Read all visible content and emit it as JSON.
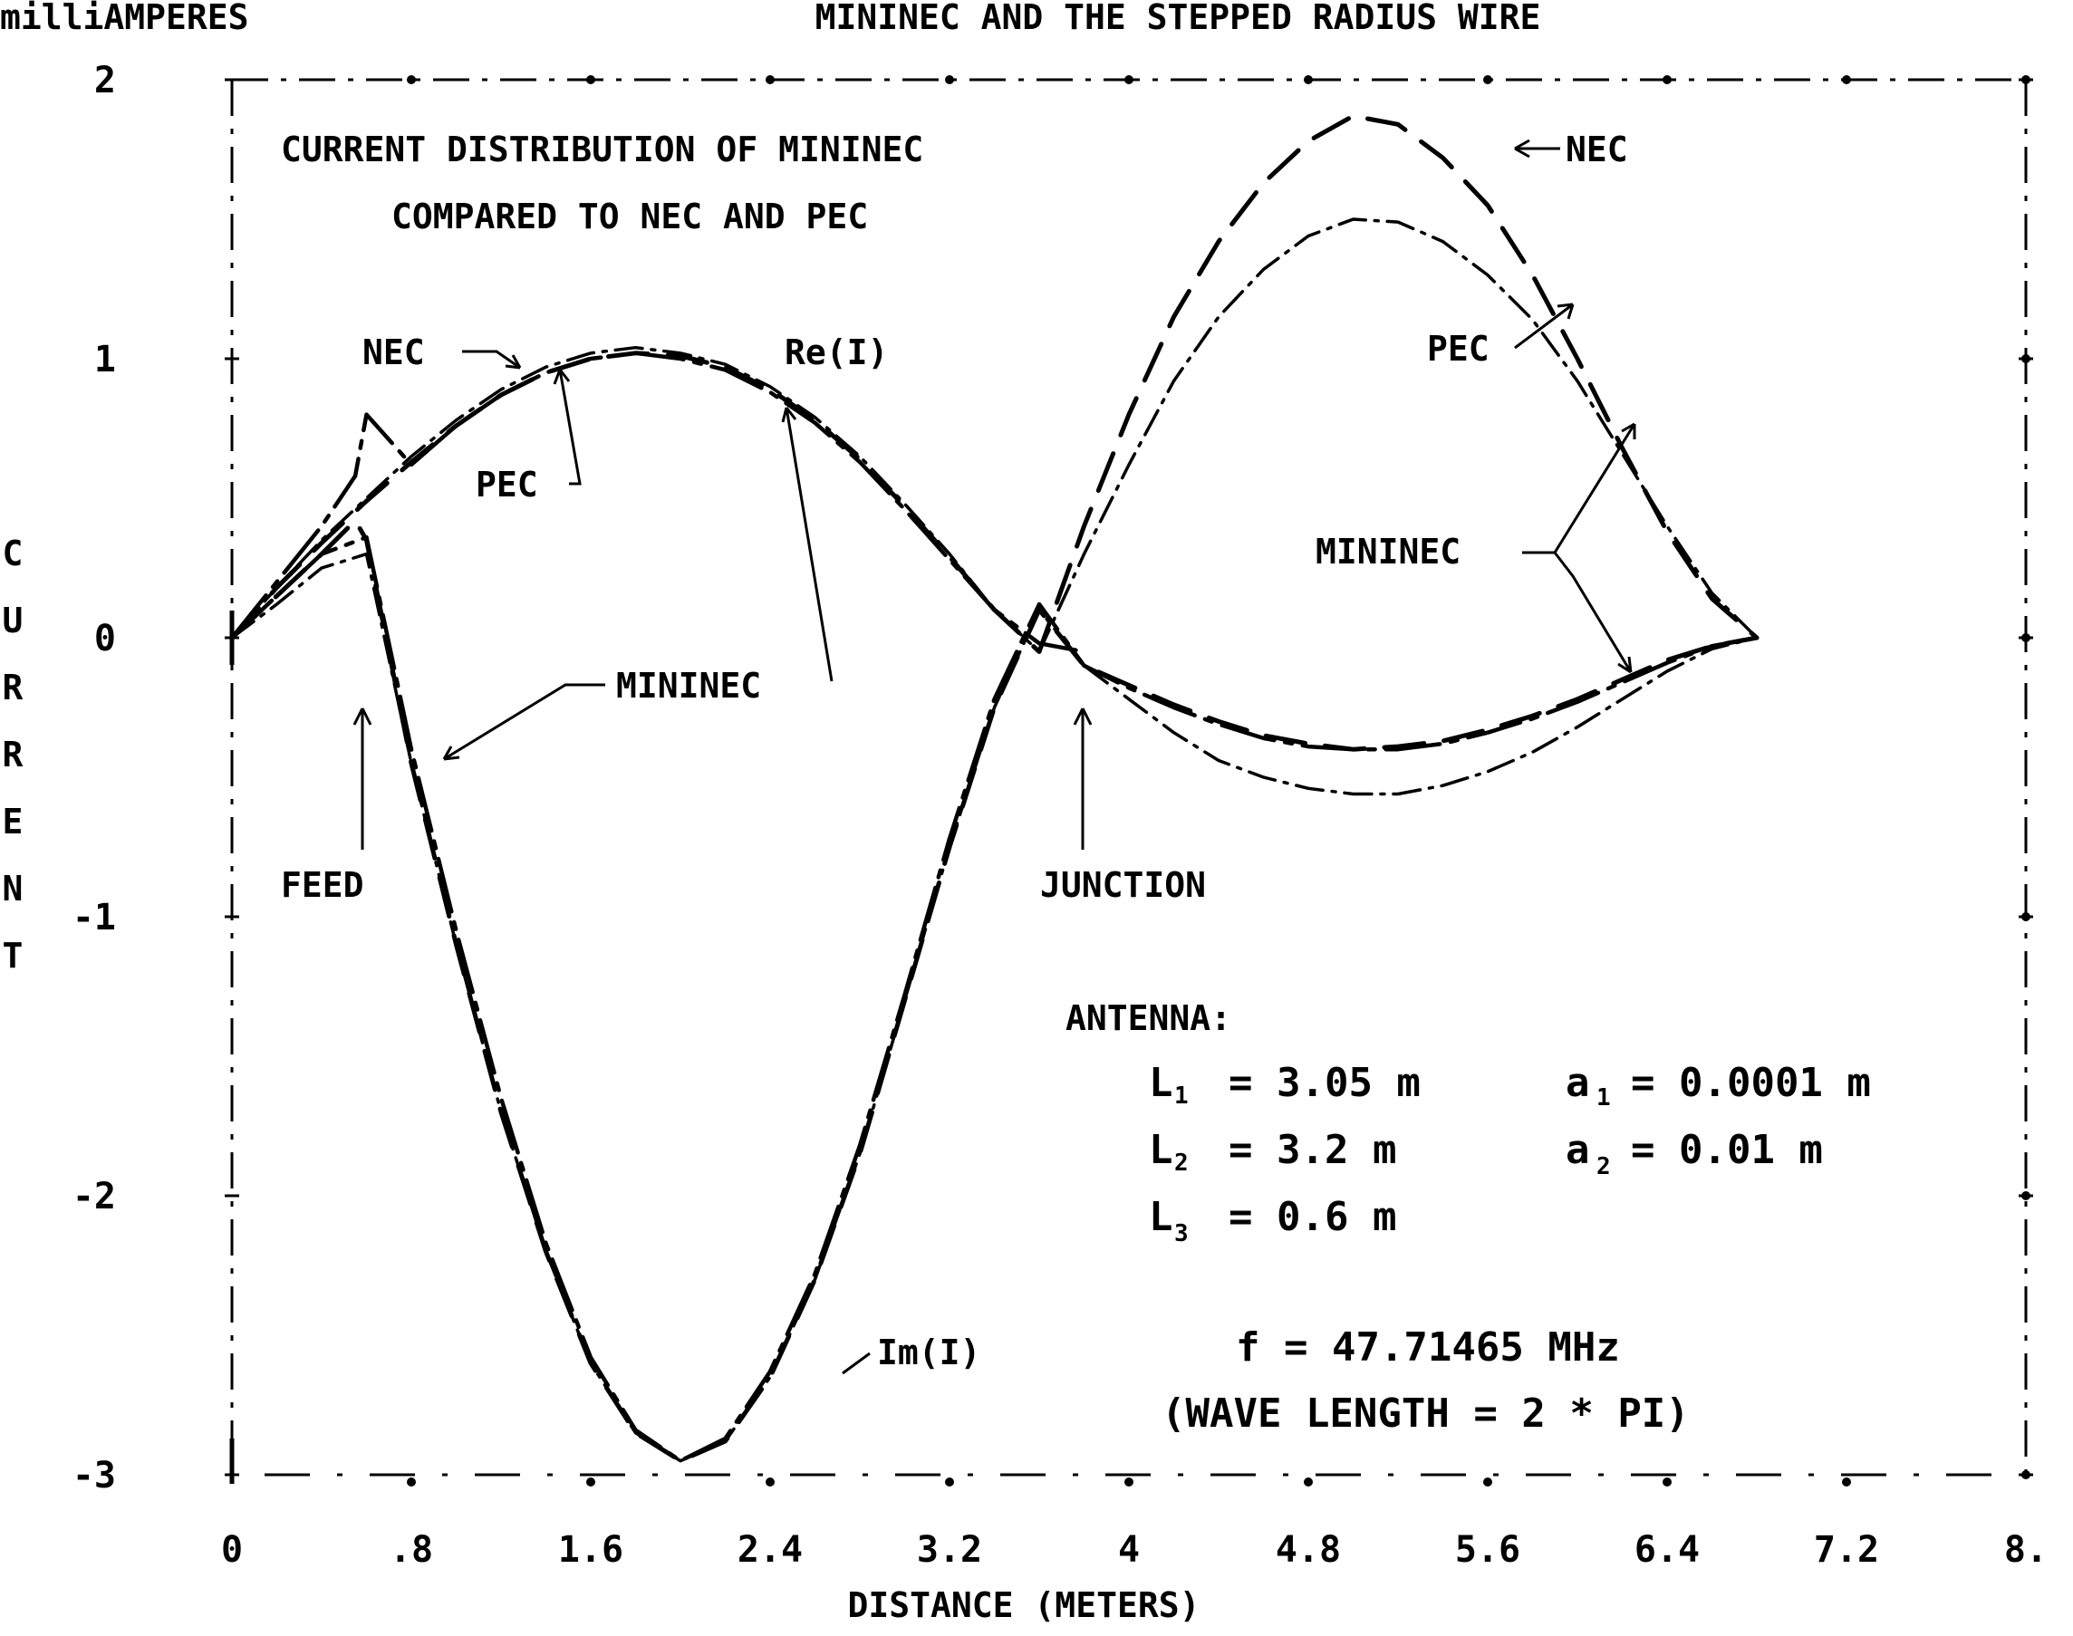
{
  "chart_data": {
    "type": "line",
    "title": "MININEC AND THE STEPPED RADIUS WIRE",
    "subtitle": "CURRENT DISTRIBUTION OF MININEC COMPARED TO NEC AND PEC",
    "subtitle_lines": [
      "CURRENT DISTRIBUTION OF MININEC",
      "COMPARED TO NEC AND PEC"
    ],
    "units_label": "milliAMPERES",
    "xlabel": "DISTANCE (METERS)",
    "ylabel": "CURRENT",
    "xlim": [
      0,
      8
    ],
    "ylim": [
      -3,
      2
    ],
    "x_ticks": [
      0,
      0.8,
      1.6,
      2.4,
      3.2,
      4,
      4.8,
      5.6,
      6.4,
      7.2,
      8
    ],
    "x_tick_labels": [
      "0",
      ".8",
      "1.6",
      "2.4",
      "3.2",
      "4",
      "4.8",
      "5.6",
      "6.4",
      "7.2",
      "8."
    ],
    "y_ticks": [
      2,
      1,
      0,
      -1,
      -2,
      -3
    ],
    "y_tick_labels": [
      "2",
      "1",
      "0",
      "-1",
      "-2",
      "-3"
    ],
    "grid": false,
    "legend": "none",
    "series": [
      {
        "name": "NEC",
        "part": "Re(I)",
        "style": "dash",
        "x": [
          0,
          0.2,
          0.4,
          0.6,
          0.8,
          1.0,
          1.2,
          1.4,
          1.6,
          1.8,
          2.0,
          2.2,
          2.4,
          2.6,
          2.8,
          3.0,
          3.2,
          3.4,
          3.6,
          3.8,
          4.0,
          4.2,
          4.4,
          4.6,
          4.8,
          5.0,
          5.2,
          5.4,
          5.6,
          5.8,
          6.0,
          6.2,
          6.4,
          6.6,
          6.8
        ],
        "y": [
          0,
          0.18,
          0.34,
          0.49,
          0.63,
          0.76,
          0.87,
          0.95,
          1.0,
          1.02,
          1.01,
          0.97,
          0.89,
          0.78,
          0.64,
          0.47,
          0.29,
          0.1,
          -0.05,
          0.4,
          0.8,
          1.15,
          1.42,
          1.63,
          1.78,
          1.87,
          1.84,
          1.72,
          1.55,
          1.3,
          1.0,
          0.68,
          0.38,
          0.14,
          0
        ]
      },
      {
        "name": "PEC",
        "part": "Re(I)",
        "style": "dash-dot",
        "x": [
          0,
          0.2,
          0.4,
          0.6,
          0.8,
          1.0,
          1.2,
          1.4,
          1.6,
          1.8,
          2.0,
          2.2,
          2.4,
          2.6,
          2.8,
          3.0,
          3.2,
          3.4,
          3.6,
          3.8,
          4.0,
          4.2,
          4.4,
          4.6,
          4.8,
          5.0,
          5.2,
          5.4,
          5.6,
          5.8,
          6.0,
          6.2,
          6.4,
          6.6,
          6.8
        ],
        "y": [
          0,
          0.18,
          0.35,
          0.5,
          0.65,
          0.78,
          0.89,
          0.97,
          1.02,
          1.04,
          1.02,
          0.98,
          0.9,
          0.79,
          0.65,
          0.48,
          0.3,
          0.1,
          -0.05,
          0.3,
          0.62,
          0.92,
          1.15,
          1.32,
          1.44,
          1.5,
          1.49,
          1.42,
          1.3,
          1.14,
          0.92,
          0.66,
          0.4,
          0.16,
          0
        ]
      },
      {
        "name": "MININEC",
        "part": "Re(I)",
        "style": "long-dash-dot",
        "x": [
          0,
          0.2,
          0.4,
          0.55,
          0.6,
          0.8,
          1.0,
          1.2,
          1.4,
          1.6,
          1.8,
          2.0,
          2.2,
          2.4,
          2.6,
          2.8,
          3.0,
          3.2,
          3.4,
          3.6,
          3.8
        ],
        "y": [
          0,
          0.2,
          0.4,
          0.58,
          0.8,
          0.62,
          0.76,
          0.87,
          0.95,
          1.0,
          1.02,
          1.0,
          0.96,
          0.88,
          0.77,
          0.63,
          0.46,
          0.28,
          0.1,
          -0.02,
          -0.05
        ]
      },
      {
        "name": "NEC",
        "part": "Im(I)",
        "style": "dash",
        "x": [
          0,
          0.2,
          0.4,
          0.55,
          0.6,
          0.8,
          1.0,
          1.2,
          1.4,
          1.6,
          1.8,
          2.0,
          2.2,
          2.4,
          2.6,
          2.8,
          3.0,
          3.2,
          3.4,
          3.6,
          3.8,
          4.0,
          4.2,
          4.4,
          4.6,
          4.8,
          5.0,
          5.2,
          5.4,
          5.6,
          5.8,
          6.0,
          6.2,
          6.4,
          6.6,
          6.8
        ],
        "y": [
          0,
          0.15,
          0.3,
          0.42,
          0.35,
          -0.45,
          -1.1,
          -1.7,
          -2.2,
          -2.6,
          -2.85,
          -2.95,
          -2.88,
          -2.65,
          -2.3,
          -1.85,
          -1.3,
          -0.75,
          -0.25,
          0.1,
          -0.1,
          -0.17,
          -0.24,
          -0.3,
          -0.35,
          -0.38,
          -0.4,
          -0.39,
          -0.37,
          -0.33,
          -0.28,
          -0.22,
          -0.15,
          -0.08,
          -0.03,
          0
        ]
      },
      {
        "name": "PEC",
        "part": "Im(I)",
        "style": "dash-dot",
        "x": [
          0,
          0.2,
          0.4,
          0.6,
          0.8,
          1.0,
          1.2,
          1.4,
          1.6,
          1.8,
          2.0,
          2.2,
          2.4,
          2.6,
          2.8,
          3.0,
          3.2,
          3.4,
          3.6,
          3.8,
          4.0,
          4.2,
          4.4,
          4.6,
          4.8,
          5.0,
          5.2,
          5.4,
          5.6,
          5.8,
          6.0,
          6.2,
          6.4,
          6.6,
          6.8
        ],
        "y": [
          0,
          0.12,
          0.25,
          0.3,
          -0.45,
          -1.1,
          -1.7,
          -2.2,
          -2.6,
          -2.85,
          -2.95,
          -2.88,
          -2.65,
          -2.3,
          -1.85,
          -1.3,
          -0.75,
          -0.25,
          0.1,
          -0.1,
          -0.22,
          -0.34,
          -0.44,
          -0.5,
          -0.54,
          -0.56,
          -0.56,
          -0.53,
          -0.48,
          -0.41,
          -0.32,
          -0.22,
          -0.12,
          -0.04,
          0
        ]
      },
      {
        "name": "MININEC",
        "part": "Im(I)",
        "style": "long-dash-dot",
        "x": [
          0,
          0.2,
          0.4,
          0.6,
          0.8,
          1.0,
          1.2,
          1.4,
          1.6,
          1.8,
          2.0,
          2.2,
          2.4,
          2.6,
          2.8,
          3.0,
          3.2,
          3.4,
          3.6,
          3.8,
          4.0,
          4.2,
          4.4,
          4.6,
          4.8,
          5.0,
          5.2,
          5.4,
          5.6,
          5.8,
          6.0,
          6.2,
          6.4,
          6.6,
          6.8
        ],
        "y": [
          0,
          0.15,
          0.3,
          0.36,
          -0.4,
          -1.05,
          -1.65,
          -2.17,
          -2.58,
          -2.84,
          -2.95,
          -2.87,
          -2.63,
          -2.28,
          -1.82,
          -1.28,
          -0.72,
          -0.22,
          0.12,
          -0.1,
          -0.18,
          -0.25,
          -0.31,
          -0.36,
          -0.39,
          -0.4,
          -0.4,
          -0.38,
          -0.34,
          -0.29,
          -0.23,
          -0.16,
          -0.09,
          -0.03,
          0
        ]
      }
    ],
    "annotations": [
      {
        "text": "NEC",
        "points_to": "NEC Re(I) peak near 5.2 m"
      },
      {
        "text": "PEC",
        "points_to": "PEC Re(I) near 6 m"
      },
      {
        "text": "MININEC",
        "points_to": "MININEC curves near 6 m"
      },
      {
        "text": "NEC",
        "points_to": "NEC Re(I) near 1.3 m"
      },
      {
        "text": "PEC",
        "points_to": "PEC Re(I) near 1.5 m"
      },
      {
        "text": "Re(I)",
        "points_to": "real part curves"
      },
      {
        "text": "MININEC",
        "points_to": "MININEC curves near 1 m and 2.5 m"
      },
      {
        "text": "FEED",
        "points_to": "x = 0.6 m"
      },
      {
        "text": "JUNCTION",
        "points_to": "x = 3.8 m"
      },
      {
        "text": "Im(I)",
        "points_to": "imaginary part curves"
      }
    ],
    "antenna_info": {
      "heading": "ANTENNA:",
      "lines": [
        {
          "label": "L",
          "sub": "1",
          "value": "= 3.05 m"
        },
        {
          "label": "L",
          "sub": "2",
          "value": "= 3.2 m"
        },
        {
          "label": "L",
          "sub": "3",
          "value": "= 0.6 m"
        },
        {
          "label": "a",
          "sub": "1",
          "value": "= 0.0001 m"
        },
        {
          "label": "a",
          "sub": "2",
          "value": "= 0.01 m"
        }
      ],
      "frequency": "f = 47.71465 MHz",
      "wavelength": "(WAVE LENGTH = 2 * PI)"
    }
  }
}
